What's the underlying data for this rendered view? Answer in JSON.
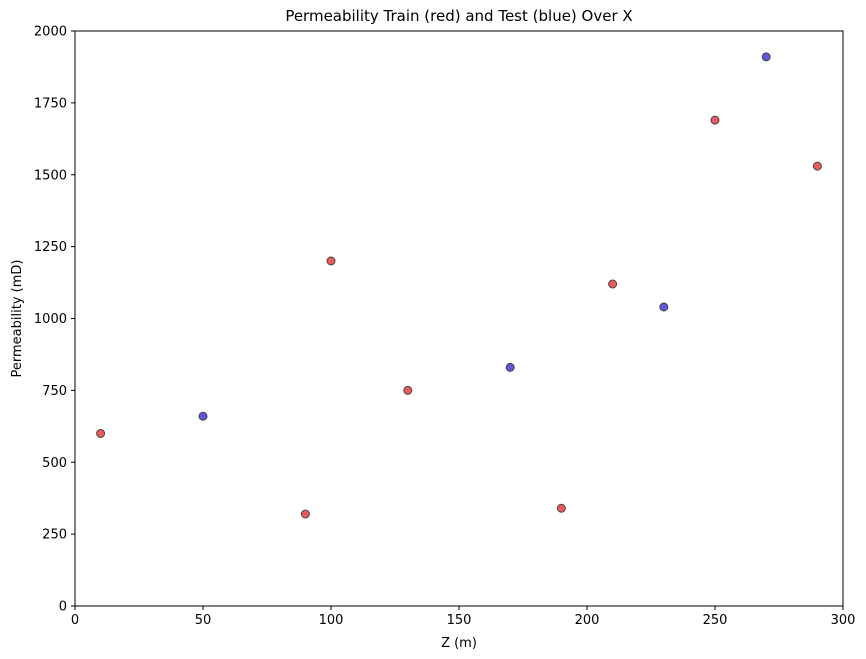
{
  "chart_data": {
    "type": "scatter",
    "title": "Permeability Train (red) and Test (blue) Over X",
    "xlabel": "Z (m)",
    "ylabel": "Permeability (mD)",
    "xlim": [
      0,
      300
    ],
    "ylim": [
      0,
      2000
    ],
    "xticks": [
      0,
      50,
      100,
      150,
      200,
      250,
      300
    ],
    "yticks": [
      0,
      250,
      500,
      750,
      1000,
      1250,
      1500,
      1750,
      2000
    ],
    "x_tick_labels": [
      "0",
      "50",
      "100",
      "150",
      "200",
      "250",
      "300"
    ],
    "y_tick_labels": [
      "0",
      "250",
      "500",
      "750",
      "1000",
      "1250",
      "1500",
      "1750",
      "2000"
    ],
    "grid": false,
    "series": [
      {
        "color": "#e8474a",
        "points": [
          {
            "x": 10,
            "y": 600
          },
          {
            "x": 90,
            "y": 320
          },
          {
            "x": 100,
            "y": 1200
          },
          {
            "x": 130,
            "y": 750
          },
          {
            "x": 190,
            "y": 340
          },
          {
            "x": 210,
            "y": 1120
          },
          {
            "x": 250,
            "y": 1690
          },
          {
            "x": 290,
            "y": 1530
          }
        ]
      },
      {
        "color": "#4b45d6",
        "points": [
          {
            "x": 50,
            "y": 660
          },
          {
            "x": 170,
            "y": 830
          },
          {
            "x": 230,
            "y": 1040
          },
          {
            "x": 270,
            "y": 1910
          }
        ]
      }
    ]
  }
}
